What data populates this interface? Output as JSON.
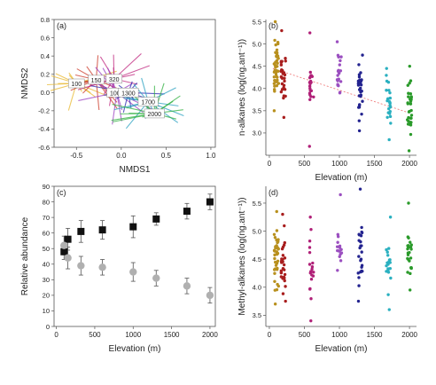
{
  "figure": {
    "panels": [
      "(a)",
      "(b)",
      "(c)",
      "(d)"
    ]
  },
  "chart_data": [
    {
      "id": "a",
      "panel_label": "(a)",
      "type": "scatter",
      "xlabel": "NMDS1",
      "ylabel": "NMDS2",
      "xlim": [
        -0.75,
        1.05
      ],
      "ylim": [
        -0.6,
        0.8
      ],
      "xticks": [
        "-0.5",
        "0.0",
        "0.5",
        "1.0"
      ],
      "yticks": [
        "-0.6",
        "-0.4",
        "-0.2",
        "0.0",
        "0.2",
        "0.4",
        "0.6",
        "0.8"
      ],
      "xtick_values": [
        -0.5,
        0.0,
        0.5,
        1.0
      ],
      "ytick_values": [
        -0.6,
        -0.4,
        -0.2,
        0.0,
        0.2,
        0.4,
        0.6,
        0.8
      ],
      "centroids": [
        {
          "label": "100",
          "x": -0.5,
          "y": 0.1,
          "color": "#e8b830"
        },
        {
          "label": "150",
          "x": -0.28,
          "y": 0.14,
          "color": "#cc3a2a"
        },
        {
          "label": "320",
          "x": -0.08,
          "y": 0.15,
          "color": "#c02a80"
        },
        {
          "label": "1000",
          "x": -0.05,
          "y": 0.0,
          "color": "#9b3fc0"
        },
        {
          "label": "1300",
          "x": 0.08,
          "y": 0.0,
          "color": "#2a2ab0"
        },
        {
          "label": "1700",
          "x": 0.3,
          "y": -0.1,
          "color": "#2aa0c0"
        },
        {
          "label": "2000",
          "x": 0.37,
          "y": -0.23,
          "color": "#30b040"
        }
      ]
    },
    {
      "id": "b",
      "panel_label": "(b)",
      "type": "scatter",
      "xlabel": "Elevation (m)",
      "ylabel": "n-alkanes (log(ng.ant⁻¹))",
      "xlim": [
        -50,
        2100
      ],
      "ylim": [
        2.5,
        5.55
      ],
      "xticks": [
        "0",
        "500",
        "1000",
        "1500",
        "2000"
      ],
      "yticks": [
        "3.0",
        "3.5",
        "4.0",
        "4.5",
        "5.0",
        "5.5"
      ],
      "xtick_values": [
        0,
        500,
        1000,
        1500,
        2000
      ],
      "ytick_values": [
        3.0,
        3.5,
        4.0,
        4.5,
        5.0,
        5.5
      ],
      "trend": {
        "x": [
          50,
          2000
        ],
        "y": [
          4.45,
          3.45
        ],
        "color": "#f08080"
      },
      "series": [
        {
          "x": 100,
          "ymin": 3.6,
          "ymax": 5.45,
          "n": 40,
          "color": "#b8901e",
          "extra": [
            3.5,
            5.5
          ]
        },
        {
          "x": 200,
          "ymin": 3.5,
          "ymax": 5.2,
          "n": 28,
          "color": "#a81e1e",
          "extra": [
            3.35,
            5.3
          ]
        },
        {
          "x": 600,
          "ymin": 3.55,
          "ymax": 4.5,
          "n": 18,
          "color": "#b02078",
          "extra": [
            2.7,
            5.25
          ]
        },
        {
          "x": 1000,
          "ymin": 3.6,
          "ymax": 5.0,
          "n": 20,
          "color": "#9b4fc0",
          "extra": [
            3.9,
            5.05
          ]
        },
        {
          "x": 1300,
          "ymin": 3.1,
          "ymax": 4.75,
          "n": 28,
          "color": "#23238f",
          "extra": [
            3.05,
            4.75
          ]
        },
        {
          "x": 1700,
          "ymin": 2.9,
          "ymax": 4.5,
          "n": 22,
          "color": "#2ab0c0",
          "extra": [
            2.85,
            4.45
          ]
        },
        {
          "x": 2000,
          "ymin": 2.65,
          "ymax": 4.5,
          "n": 30,
          "color": "#2a9a2a",
          "extra": [
            2.6,
            4.5
          ]
        }
      ]
    },
    {
      "id": "c",
      "panel_label": "(c)",
      "type": "scatter",
      "xlabel": "Elevation (m)",
      "ylabel": "Relative   abundance",
      "xlim": [
        -30,
        2070
      ],
      "ylim": [
        0,
        90
      ],
      "xticks": [
        "0",
        "500",
        "1000",
        "1500",
        "2000"
      ],
      "yticks": [
        "0",
        "10",
        "20",
        "30",
        "40",
        "50",
        "60",
        "70",
        "80",
        "90"
      ],
      "xtick_values": [
        0,
        500,
        1000,
        1500,
        2000
      ],
      "ytick_values": [
        0,
        10,
        20,
        30,
        40,
        50,
        60,
        70,
        80,
        90
      ],
      "series": [
        {
          "marker": "square",
          "color": "#111111",
          "x": [
            100,
            150,
            320,
            600,
            1000,
            1300,
            1700,
            2000
          ],
          "y": [
            48,
            56,
            61,
            62,
            64,
            69,
            74,
            80
          ],
          "err": [
            5,
            7,
            7,
            6,
            7,
            4,
            5,
            5
          ]
        },
        {
          "marker": "circle",
          "color": "#b0b0b0",
          "x": [
            100,
            150,
            320,
            600,
            1000,
            1300,
            1700,
            2000
          ],
          "y": [
            52,
            44,
            39,
            38,
            35,
            31,
            26,
            20
          ],
          "err": [
            6,
            7,
            6,
            5,
            6,
            5,
            5,
            5
          ]
        }
      ]
    },
    {
      "id": "d",
      "panel_label": "(d)",
      "type": "scatter",
      "xlabel": "Elevation (m)",
      "ylabel": "Methyl-alkanes (log(ng.ant⁻¹))",
      "xlim": [
        -50,
        2100
      ],
      "ylim": [
        3.3,
        5.8
      ],
      "xticks": [
        "0",
        "500",
        "1000",
        "1500",
        "2000"
      ],
      "yticks": [
        "3.5",
        "4.0",
        "4.5",
        "5.0",
        "5.5"
      ],
      "xtick_values": [
        0,
        500,
        1000,
        1500,
        2000
      ],
      "ytick_values": [
        3.5,
        4.0,
        4.5,
        5.0,
        5.5
      ],
      "series": [
        {
          "x": 100,
          "ymin": 3.75,
          "ymax": 5.35,
          "n": 36,
          "color": "#b8901e",
          "extra": [
            3.7,
            5.35
          ]
        },
        {
          "x": 200,
          "ymin": 3.75,
          "ymax": 5.25,
          "n": 26,
          "color": "#a81e1e",
          "extra": [
            3.75,
            5.3
          ]
        },
        {
          "x": 600,
          "ymin": 3.55,
          "ymax": 5.25,
          "n": 18,
          "color": "#b02078",
          "extra": [
            3.4,
            5.25
          ]
        },
        {
          "x": 1000,
          "ymin": 4.3,
          "ymax": 5.1,
          "n": 14,
          "color": "#9b4fc0",
          "extra": [
            4.3,
            5.65
          ]
        },
        {
          "x": 1300,
          "ymin": 3.8,
          "ymax": 5.45,
          "n": 24,
          "color": "#23238f",
          "extra": [
            3.75,
            5.75
          ]
        },
        {
          "x": 1700,
          "ymin": 3.75,
          "ymax": 5.1,
          "n": 18,
          "color": "#2ab0c0",
          "extra": [
            3.6,
            5.25
          ]
        },
        {
          "x": 2000,
          "ymin": 4.0,
          "ymax": 5.1,
          "n": 22,
          "color": "#2a9a2a",
          "extra": [
            3.95,
            5.5
          ]
        }
      ]
    }
  ]
}
